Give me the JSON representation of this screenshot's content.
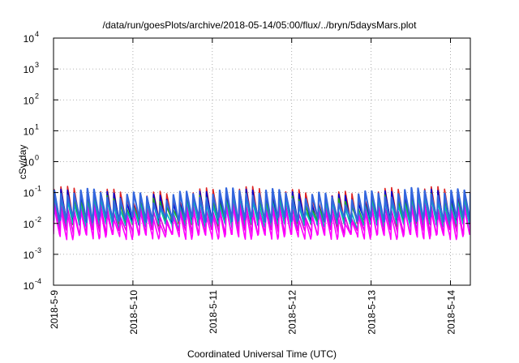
{
  "chart_data": {
    "type": "line",
    "title": "/data/run/goesPlots/archive/2018-05-14/05:00/flux/../bryn/5daysMars.plot",
    "xlabel": "Coordinated Universal Time (UTC)",
    "ylabel": "cSv/day",
    "yscale": "log",
    "ylim": [
      0.0001,
      10000
    ],
    "xlim_days": [
      0,
      5.25
    ],
    "grid": true,
    "y_ticks": [
      {
        "base": "10",
        "exp": "-4"
      },
      {
        "base": "10",
        "exp": "-3"
      },
      {
        "base": "10",
        "exp": "-2"
      },
      {
        "base": "10",
        "exp": "-1"
      },
      {
        "base": "10",
        "exp": "0"
      },
      {
        "base": "10",
        "exp": "1"
      },
      {
        "base": "10",
        "exp": "2"
      },
      {
        "base": "10",
        "exp": "3"
      },
      {
        "base": "10",
        "exp": "4"
      }
    ],
    "x_ticks": [
      "2018-5-9",
      "2018-5-10",
      "2018-5-11",
      "2018-5-12",
      "2018-5-13",
      "2018-5-14"
    ],
    "series": [
      {
        "color": "#dd2222",
        "base": 0.1,
        "low": 0.012
      },
      {
        "color": "#0000cc",
        "base": 0.08,
        "low": 0.011
      },
      {
        "color": "#22aa22",
        "base": 0.06,
        "low": 0.01
      },
      {
        "color": "#00bbbb",
        "base": 0.045,
        "low": 0.008
      },
      {
        "color": "#dd00dd",
        "base": 0.03,
        "low": 0.005
      },
      {
        "color": "#ff00ff",
        "base": 0.022,
        "low": 0.0035
      },
      {
        "color": "#3366dd",
        "base": 0.09,
        "low": 0.013
      }
    ]
  }
}
